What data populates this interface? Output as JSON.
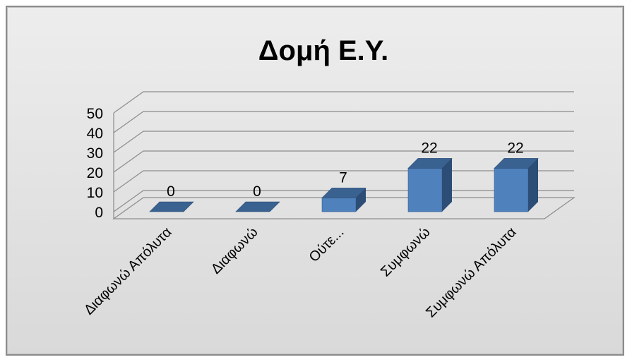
{
  "chart_data": {
    "type": "bar",
    "title": "Δομή Ε.Υ.",
    "xlabel": "",
    "ylabel": "",
    "categories": [
      "Διαφωνώ Απόλυτα",
      "Διαφωνώ",
      "Ούτε...",
      "Συμφωνώ",
      "Συμφωνώ Απόλυτα"
    ],
    "values": [
      0,
      0,
      7,
      22,
      22
    ],
    "data_labels": [
      "0",
      "0",
      "7",
      "22",
      "22"
    ],
    "ylim": [
      0,
      50
    ],
    "yticks": [
      "0",
      "10",
      "20",
      "30",
      "40",
      "50"
    ],
    "grid": true,
    "legend": "none",
    "style": "3d-column",
    "bar_color": "#4f81bd",
    "bar_side_color": "#2c4d75",
    "bar_top_color": "#3a6291",
    "background_color": "#e3e3e3"
  }
}
